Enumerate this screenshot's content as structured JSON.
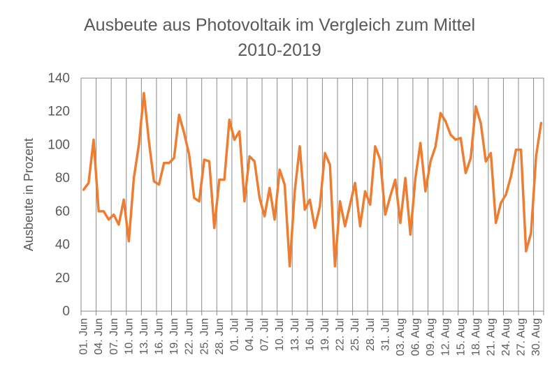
{
  "chart_data": {
    "type": "line",
    "title_line1": "Ausbeute aus Photovoltaik im Vergleich zum Mittel",
    "title_line2": "2010-2019",
    "xlabel": "",
    "ylabel": "Ausbeute in Prozent",
    "ylim": [
      0,
      140
    ],
    "yticks": [
      0,
      20,
      40,
      60,
      80,
      100,
      120,
      140
    ],
    "grid": "vertical",
    "series_color": "#ED7D31",
    "xtick_labels": [
      "01. Jun",
      "04. Jun",
      "07. Jun",
      "10. Jun",
      "13. Jun",
      "16. Jun",
      "19. Jun",
      "22. Jun",
      "25. Jun",
      "28. Jun",
      "01. Jul",
      "04. Jul",
      "07. Jul",
      "10. Jul",
      "13. Jul",
      "16. Jul",
      "19. Jul",
      "22. Jul",
      "25. Jul",
      "28. Jul",
      "31. Jul",
      "03. Aug",
      "06. Aug",
      "09. Aug",
      "12. Aug",
      "15. Aug",
      "18. Aug",
      "21. Aug",
      "24. Aug",
      "27. Aug",
      "30. Aug"
    ],
    "series": [
      {
        "values": [
          73,
          77,
          103,
          60,
          60,
          55,
          58,
          52,
          67,
          42,
          80,
          100,
          131,
          102,
          78,
          76,
          89,
          89,
          92,
          118,
          107,
          94,
          68,
          66,
          91,
          90,
          50,
          79,
          79,
          115,
          103,
          108,
          66,
          93,
          90,
          68,
          57,
          74,
          55,
          85,
          76,
          27,
          72,
          99,
          61,
          67,
          50,
          63,
          95,
          88,
          27,
          66,
          51,
          64,
          77,
          51,
          72,
          64,
          99,
          91,
          58,
          69,
          79,
          53,
          80,
          46,
          80,
          101,
          72,
          90,
          99,
          119,
          114,
          106,
          103,
          104,
          83,
          92,
          123,
          113,
          90,
          95,
          53,
          65,
          70,
          81,
          97,
          97,
          36,
          47,
          93,
          113
        ]
      }
    ]
  }
}
